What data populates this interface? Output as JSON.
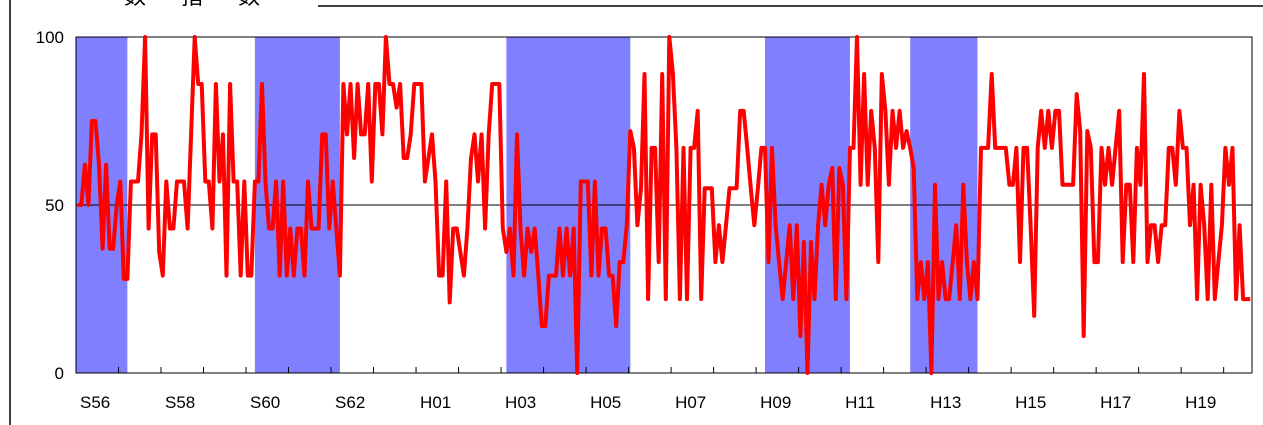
{
  "chart_data": {
    "type": "line",
    "title": "数 指 数",
    "xlabel": "",
    "ylabel": "",
    "ylim": [
      0,
      100
    ],
    "yticks": [
      0,
      50,
      100
    ],
    "reference_line": 50,
    "grid": false,
    "x_start": "S56.1",
    "points_per_year": 12,
    "x_tick_labels": [
      "S56",
      "S58",
      "S60",
      "S62",
      "H01",
      "H03",
      "H05",
      "H07",
      "H09",
      "H11",
      "H13",
      "H15",
      "H17",
      "H19"
    ],
    "x_tick_months": [
      0,
      24,
      48,
      72,
      96,
      120,
      144,
      168,
      192,
      216,
      240,
      264,
      288,
      312
    ],
    "recession_periods": [
      [
        0,
        14.5
      ],
      [
        50.5,
        74.5
      ],
      [
        121.5,
        156.5
      ],
      [
        194.5,
        218.5
      ],
      [
        235.5,
        254.5
      ]
    ],
    "colors": {
      "line": "#ff0000",
      "recession": "#8080ff",
      "reference": "#000000"
    },
    "series": [
      {
        "values": [
          50,
          50,
          62,
          50,
          75,
          75,
          62,
          37,
          62,
          37,
          37,
          50,
          57,
          28,
          28,
          57,
          57,
          57,
          71,
          100,
          43,
          71,
          71,
          36,
          29,
          57,
          43,
          43,
          57,
          57,
          57,
          43,
          71,
          100,
          86,
          86,
          57,
          57,
          43,
          86,
          57,
          71,
          29,
          86,
          57,
          57,
          29,
          57,
          29,
          29,
          57,
          57,
          86,
          57,
          43,
          43,
          57,
          29,
          57,
          29,
          43,
          29,
          43,
          43,
          29,
          57,
          43,
          43,
          43,
          71,
          71,
          43,
          57,
          43,
          29,
          86,
          71,
          86,
          64,
          86,
          71,
          71,
          86,
          57,
          86,
          86,
          71,
          100,
          86,
          86,
          79,
          86,
          64,
          64,
          71,
          86,
          86,
          86,
          57,
          64,
          71,
          57,
          29,
          29,
          57,
          21,
          43,
          43,
          36,
          29,
          43,
          64,
          71,
          57,
          71,
          43,
          71,
          86,
          86,
          86,
          43,
          36,
          43,
          29,
          71,
          43,
          29,
          43,
          36,
          43,
          29,
          14,
          14,
          29,
          29,
          29,
          43,
          29,
          43,
          29,
          43,
          0,
          57,
          57,
          57,
          29,
          57,
          29,
          43,
          43,
          29,
          29,
          14,
          33,
          33,
          44,
          72,
          67,
          44,
          55,
          89,
          22,
          67,
          67,
          33,
          89,
          22,
          100,
          89,
          67,
          22,
          67,
          22,
          67,
          67,
          78,
          22,
          55,
          55,
          55,
          33,
          44,
          33,
          44,
          55,
          55,
          55,
          78,
          78,
          67,
          55,
          44,
          55,
          67,
          67,
          33,
          67,
          44,
          33,
          22,
          33,
          44,
          22,
          44,
          11,
          39,
          0,
          39,
          22,
          44,
          56,
          44,
          56,
          61,
          22,
          61,
          56,
          22,
          67,
          67,
          100,
          56,
          89,
          56,
          78,
          67,
          33,
          89,
          78,
          56,
          78,
          67,
          78,
          67,
          72,
          67,
          61,
          22,
          33,
          22,
          33,
          0,
          56,
          22,
          33,
          22,
          22,
          33,
          44,
          22,
          56,
          33,
          22,
          33,
          22,
          67,
          67,
          67,
          89,
          67,
          67,
          67,
          67,
          56,
          56,
          67,
          33,
          67,
          67,
          44,
          17,
          67,
          78,
          67,
          78,
          67,
          78,
          78,
          56,
          56,
          56,
          56,
          83,
          72,
          11,
          72,
          67,
          33,
          33,
          67,
          56,
          67,
          56,
          67,
          78,
          33,
          56,
          56,
          33,
          67,
          56,
          89,
          33,
          44,
          44,
          33,
          44,
          44,
          67,
          67,
          56,
          78,
          67,
          67,
          44,
          56,
          22,
          56,
          44,
          22,
          56,
          22,
          33,
          44,
          67,
          56,
          67,
          22,
          44,
          22,
          22,
          22
        ]
      }
    ]
  }
}
